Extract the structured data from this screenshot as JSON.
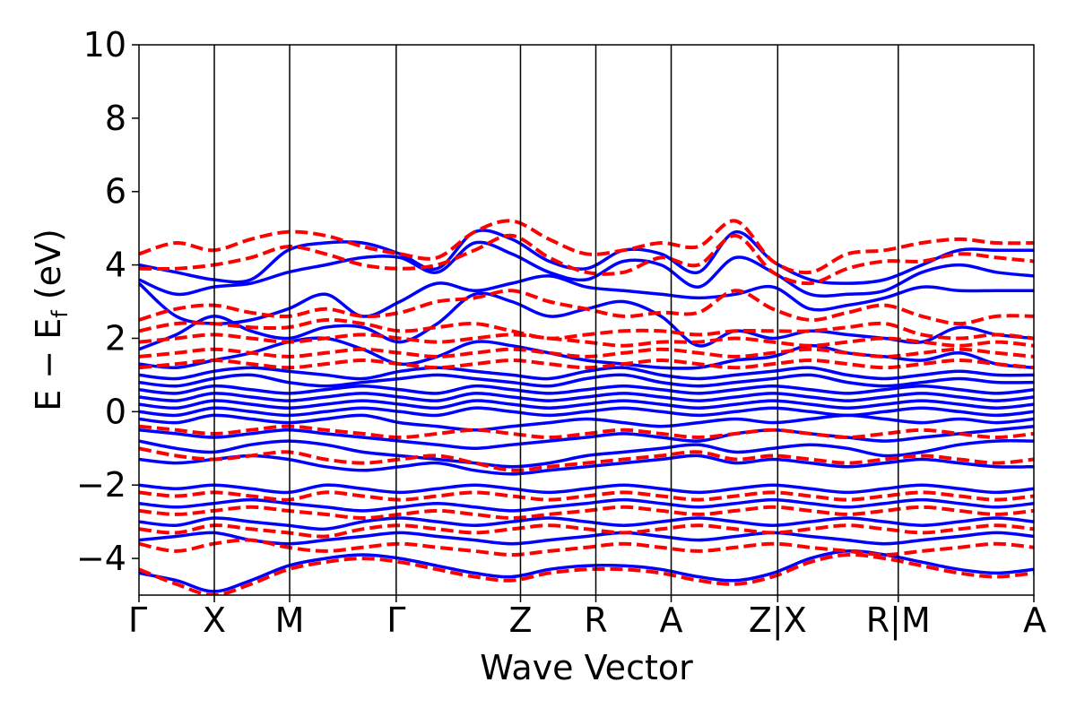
{
  "chart_data": {
    "type": "line",
    "title": "",
    "xlabel": "Wave Vector",
    "ylabel": {
      "main": "E − E",
      "sub": "f",
      "unit": " (eV)"
    },
    "ylim": [
      -5,
      10
    ],
    "y_ticks": [
      -4,
      -2,
      0,
      2,
      4,
      6,
      8,
      10
    ],
    "y_tick_labels": [
      "−4",
      "−2",
      "0",
      "2",
      "4",
      "6",
      "8",
      "10"
    ],
    "grid": false,
    "legend": "none",
    "kpath_labels": [
      "Γ",
      "X",
      "M",
      "Γ",
      "Z",
      "R",
      "A",
      "Z|X",
      "R|M",
      "A"
    ],
    "kpath_positions": [
      0,
      0.5,
      1.0,
      1.7071,
      2.5321,
      3.0321,
      3.5321,
      4.2392,
      5.0392,
      5.9392
    ],
    "series": [
      {
        "style": "solid",
        "color": "#0000ff",
        "bands": [
          [
            4.0,
            3.8,
            3.6,
            3.6,
            4.4,
            4.6,
            4.6,
            4.3,
            3.9,
            4.9,
            4.7,
            4.1,
            3.9,
            4.4,
            4.3,
            3.8,
            4.9,
            4.1,
            3.6,
            3.5,
            3.6,
            4.0,
            4.4,
            4.4,
            4.4
          ],
          [
            3.6,
            3.2,
            3.4,
            3.5,
            3.8,
            4.0,
            4.2,
            4.2,
            3.8,
            4.6,
            4.3,
            3.8,
            3.6,
            4.1,
            4.0,
            3.4,
            4.2,
            3.8,
            3.2,
            3.2,
            3.3,
            3.8,
            4.0,
            3.8,
            3.7
          ],
          [
            3.5,
            2.6,
            2.4,
            2.5,
            2.8,
            3.2,
            2.6,
            3.0,
            3.5,
            3.3,
            3.5,
            3.7,
            3.4,
            3.3,
            3.2,
            3.1,
            3.2,
            3.4,
            2.8,
            2.9,
            3.1,
            3.4,
            3.3,
            3.3,
            3.3
          ],
          [
            1.7,
            2.1,
            2.6,
            2.2,
            2.0,
            2.3,
            2.3,
            1.9,
            2.4,
            3.2,
            3.0,
            2.6,
            2.8,
            3.0,
            2.6,
            1.8,
            2.2,
            2.0,
            2.2,
            2.1,
            2.0,
            1.9,
            2.3,
            2.1,
            2.0
          ],
          [
            1.3,
            1.2,
            1.4,
            1.6,
            1.9,
            2.0,
            1.7,
            1.3,
            1.5,
            1.9,
            1.8,
            1.6,
            1.4,
            1.3,
            1.2,
            1.2,
            1.4,
            1.5,
            1.8,
            1.6,
            1.5,
            1.4,
            1.6,
            1.3,
            1.2
          ],
          [
            1.0,
            0.9,
            1.1,
            1.2,
            1.1,
            1.0,
            0.9,
            1.1,
            1.2,
            1.1,
            1.0,
            0.9,
            1.1,
            1.2,
            1.0,
            0.9,
            1.0,
            1.1,
            1.2,
            1.0,
            0.9,
            1.0,
            1.1,
            1.0,
            1.0
          ],
          [
            0.8,
            0.7,
            0.9,
            1.0,
            0.8,
            0.7,
            0.8,
            0.9,
            1.0,
            0.9,
            0.8,
            0.7,
            0.9,
            1.0,
            0.8,
            0.7,
            0.8,
            0.9,
            1.0,
            0.8,
            0.7,
            0.8,
            0.9,
            0.8,
            0.8
          ],
          [
            0.6,
            0.5,
            0.7,
            0.6,
            0.5,
            0.6,
            0.7,
            0.6,
            0.5,
            0.7,
            0.6,
            0.5,
            0.6,
            0.7,
            0.6,
            0.5,
            0.6,
            0.7,
            0.6,
            0.5,
            0.6,
            0.7,
            0.6,
            0.5,
            0.6
          ],
          [
            0.4,
            0.3,
            0.5,
            0.4,
            0.3,
            0.4,
            0.5,
            0.4,
            0.3,
            0.5,
            0.4,
            0.3,
            0.4,
            0.5,
            0.4,
            0.3,
            0.4,
            0.5,
            0.4,
            0.3,
            0.4,
            0.5,
            0.4,
            0.3,
            0.4
          ],
          [
            0.2,
            0.1,
            0.3,
            0.2,
            0.1,
            0.2,
            0.3,
            0.2,
            0.1,
            0.3,
            0.2,
            0.1,
            0.2,
            0.3,
            0.2,
            0.1,
            0.2,
            0.3,
            0.2,
            0.1,
            0.2,
            0.3,
            0.2,
            0.1,
            0.2
          ],
          [
            0.0,
            -0.1,
            0.1,
            0.0,
            -0.1,
            0.0,
            0.1,
            0.0,
            -0.1,
            0.1,
            0.0,
            -0.1,
            0.0,
            0.1,
            0.0,
            -0.1,
            0.0,
            0.1,
            0.0,
            -0.1,
            0.0,
            0.1,
            0.0,
            -0.1,
            0.0
          ],
          [
            -0.2,
            -0.3,
            -0.1,
            -0.2,
            -0.3,
            -0.2,
            -0.1,
            -0.3,
            -0.4,
            -0.5,
            -0.4,
            -0.3,
            -0.2,
            -0.3,
            -0.4,
            -0.3,
            -0.2,
            -0.3,
            -0.2,
            -0.1,
            -0.2,
            -0.3,
            -0.2,
            -0.3,
            -0.2
          ],
          [
            -0.5,
            -0.6,
            -0.7,
            -0.6,
            -0.5,
            -0.6,
            -0.7,
            -0.8,
            -0.9,
            -1.0,
            -0.9,
            -0.8,
            -0.7,
            -0.6,
            -0.7,
            -0.8,
            -0.6,
            -0.5,
            -0.6,
            -0.7,
            -0.8,
            -0.7,
            -0.6,
            -0.5,
            -0.4
          ],
          [
            -0.8,
            -1.0,
            -1.1,
            -0.9,
            -0.8,
            -0.9,
            -1.1,
            -1.2,
            -1.3,
            -1.4,
            -1.5,
            -1.4,
            -1.2,
            -1.1,
            -1.0,
            -0.9,
            -1.1,
            -1.0,
            -0.9,
            -1.0,
            -1.2,
            -1.1,
            -0.9,
            -0.8,
            -0.8
          ],
          [
            -1.3,
            -1.4,
            -1.3,
            -1.2,
            -1.3,
            -1.5,
            -1.6,
            -1.5,
            -1.4,
            -1.6,
            -1.7,
            -1.6,
            -1.5,
            -1.4,
            -1.3,
            -1.2,
            -1.4,
            -1.3,
            -1.4,
            -1.5,
            -1.4,
            -1.3,
            -1.4,
            -1.5,
            -1.5
          ],
          [
            -2.0,
            -2.1,
            -2.0,
            -2.1,
            -2.2,
            -2.0,
            -2.1,
            -2.2,
            -2.1,
            -2.0,
            -2.1,
            -2.2,
            -2.1,
            -2.0,
            -2.1,
            -2.2,
            -2.1,
            -2.0,
            -2.1,
            -2.2,
            -2.1,
            -2.0,
            -2.1,
            -2.2,
            -2.1
          ],
          [
            -2.5,
            -2.6,
            -2.5,
            -2.4,
            -2.5,
            -2.6,
            -2.7,
            -2.6,
            -2.5,
            -2.6,
            -2.7,
            -2.6,
            -2.5,
            -2.4,
            -2.5,
            -2.6,
            -2.5,
            -2.4,
            -2.5,
            -2.6,
            -2.5,
            -2.4,
            -2.5,
            -2.6,
            -2.5
          ],
          [
            -3.0,
            -3.1,
            -2.9,
            -3.0,
            -3.1,
            -3.2,
            -3.0,
            -2.9,
            -3.0,
            -3.1,
            -3.0,
            -2.9,
            -3.0,
            -3.1,
            -3.0,
            -2.9,
            -3.0,
            -3.1,
            -3.0,
            -2.9,
            -3.0,
            -3.1,
            -3.0,
            -2.9,
            -3.0
          ],
          [
            -3.5,
            -3.4,
            -3.3,
            -3.5,
            -3.6,
            -3.5,
            -3.4,
            -3.3,
            -3.4,
            -3.5,
            -3.6,
            -3.5,
            -3.4,
            -3.3,
            -3.4,
            -3.5,
            -3.4,
            -3.3,
            -3.4,
            -3.5,
            -3.6,
            -3.5,
            -3.4,
            -3.3,
            -3.4
          ],
          [
            -4.4,
            -4.6,
            -4.9,
            -4.6,
            -4.2,
            -4.0,
            -3.9,
            -4.0,
            -4.2,
            -4.4,
            -4.5,
            -4.3,
            -4.2,
            -4.2,
            -4.3,
            -4.5,
            -4.6,
            -4.4,
            -4.0,
            -3.8,
            -3.9,
            -4.1,
            -4.3,
            -4.4,
            -4.3
          ]
        ]
      },
      {
        "style": "dashed",
        "color": "#ff0000",
        "bands": [
          [
            4.3,
            4.6,
            4.4,
            4.7,
            4.9,
            4.8,
            4.5,
            4.3,
            4.2,
            4.9,
            5.2,
            4.7,
            4.3,
            4.4,
            4.6,
            4.5,
            5.2,
            4.1,
            3.8,
            4.3,
            4.4,
            4.6,
            4.7,
            4.6,
            4.6
          ],
          [
            3.9,
            3.9,
            4.0,
            4.2,
            4.5,
            4.3,
            4.0,
            3.9,
            4.0,
            4.4,
            4.8,
            4.2,
            3.8,
            3.8,
            4.2,
            4.0,
            4.8,
            3.8,
            3.5,
            3.9,
            4.1,
            4.1,
            4.3,
            4.2,
            4.1
          ],
          [
            2.5,
            2.8,
            2.9,
            2.7,
            2.6,
            2.8,
            2.6,
            2.7,
            3.0,
            3.1,
            3.3,
            3.0,
            2.8,
            2.6,
            2.7,
            2.7,
            3.3,
            2.8,
            2.5,
            2.7,
            2.9,
            2.6,
            2.4,
            2.6,
            2.6
          ],
          [
            2.2,
            2.4,
            2.4,
            2.3,
            2.3,
            2.5,
            2.4,
            2.2,
            2.3,
            2.4,
            2.2,
            2.0,
            2.1,
            2.2,
            2.2,
            2.1,
            2.2,
            2.2,
            2.2,
            2.3,
            2.4,
            2.1,
            2.0,
            2.1,
            2.0
          ],
          [
            1.9,
            2.0,
            2.1,
            2.0,
            1.9,
            2.0,
            2.1,
            2.0,
            1.9,
            2.0,
            2.1,
            2.0,
            1.9,
            1.8,
            1.9,
            1.9,
            2.0,
            1.9,
            1.8,
            1.9,
            2.0,
            1.9,
            1.8,
            1.9,
            1.8
          ],
          [
            1.5,
            1.6,
            1.7,
            1.6,
            1.5,
            1.6,
            1.7,
            1.6,
            1.5,
            1.6,
            1.7,
            1.6,
            1.5,
            1.6,
            1.7,
            1.6,
            1.5,
            1.6,
            1.7,
            1.6,
            1.5,
            1.6,
            1.7,
            1.6,
            1.5
          ],
          [
            1.2,
            1.3,
            1.4,
            1.3,
            1.2,
            1.3,
            1.4,
            1.3,
            1.2,
            1.3,
            1.4,
            1.3,
            1.2,
            1.3,
            1.4,
            1.3,
            1.2,
            1.3,
            1.4,
            1.3,
            1.2,
            1.3,
            1.4,
            1.3,
            1.2
          ],
          [
            -0.4,
            -0.5,
            -0.6,
            -0.5,
            -0.4,
            -0.5,
            -0.6,
            -0.7,
            -0.6,
            -0.5,
            -0.6,
            -0.7,
            -0.6,
            -0.5,
            -0.6,
            -0.7,
            -0.6,
            -0.5,
            -0.6,
            -0.7,
            -0.6,
            -0.5,
            -0.6,
            -0.7,
            -0.6
          ],
          [
            -1.0,
            -1.2,
            -1.3,
            -1.2,
            -1.1,
            -1.3,
            -1.4,
            -1.3,
            -1.2,
            -1.4,
            -1.6,
            -1.5,
            -1.4,
            -1.3,
            -1.2,
            -1.1,
            -1.3,
            -1.2,
            -1.3,
            -1.4,
            -1.3,
            -1.2,
            -1.3,
            -1.4,
            -1.3
          ],
          [
            -2.2,
            -2.3,
            -2.2,
            -2.3,
            -2.4,
            -2.2,
            -2.3,
            -2.4,
            -2.3,
            -2.2,
            -2.3,
            -2.4,
            -2.3,
            -2.2,
            -2.3,
            -2.4,
            -2.3,
            -2.2,
            -2.3,
            -2.4,
            -2.3,
            -2.2,
            -2.3,
            -2.4,
            -2.3
          ],
          [
            -2.7,
            -2.8,
            -2.7,
            -2.6,
            -2.7,
            -2.8,
            -2.9,
            -2.8,
            -2.7,
            -2.8,
            -2.9,
            -2.8,
            -2.7,
            -2.6,
            -2.7,
            -2.8,
            -2.7,
            -2.6,
            -2.7,
            -2.8,
            -2.7,
            -2.6,
            -2.7,
            -2.8,
            -2.7
          ],
          [
            -3.2,
            -3.3,
            -3.1,
            -3.2,
            -3.3,
            -3.4,
            -3.2,
            -3.1,
            -3.2,
            -3.3,
            -3.2,
            -3.1,
            -3.2,
            -3.3,
            -3.2,
            -3.1,
            -3.2,
            -3.3,
            -3.2,
            -3.1,
            -3.2,
            -3.3,
            -3.2,
            -3.1,
            -3.2
          ],
          [
            -3.6,
            -3.8,
            -3.6,
            -3.5,
            -3.7,
            -3.8,
            -3.7,
            -3.6,
            -3.7,
            -3.8,
            -3.9,
            -3.8,
            -3.7,
            -3.6,
            -3.7,
            -3.8,
            -3.7,
            -3.6,
            -3.7,
            -3.8,
            -3.9,
            -3.8,
            -3.7,
            -3.6,
            -3.7
          ],
          [
            -4.3,
            -4.7,
            -5.0,
            -4.7,
            -4.3,
            -4.1,
            -4.0,
            -4.1,
            -4.3,
            -4.5,
            -4.6,
            -4.4,
            -4.3,
            -4.3,
            -4.4,
            -4.6,
            -4.7,
            -4.5,
            -4.1,
            -3.9,
            -4.0,
            -4.2,
            -4.4,
            -4.5,
            -4.4
          ]
        ]
      }
    ]
  }
}
